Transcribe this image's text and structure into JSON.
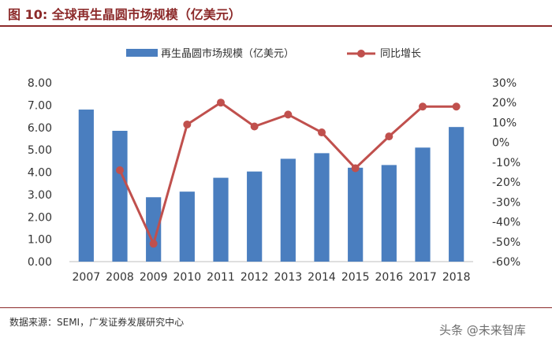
{
  "title": "图 10: 全球再生晶圆市场规模（亿美元）",
  "source": "数据来源：SEMI，广发证券发展研究中心",
  "watermark": "头条 @未来智库",
  "chart_data": {
    "type": "bar",
    "categories": [
      "2007",
      "2008",
      "2009",
      "2010",
      "2011",
      "2012",
      "2013",
      "2014",
      "2015",
      "2016",
      "2017",
      "2018"
    ],
    "series": [
      {
        "name": "再生晶圆市场规模（亿美元）",
        "type": "bar",
        "axis": "left",
        "color": "#4a7ebf",
        "values": [
          6.8,
          5.85,
          2.88,
          3.13,
          3.75,
          4.03,
          4.6,
          4.85,
          4.2,
          4.32,
          5.1,
          6.02
        ]
      },
      {
        "name": "同比增长",
        "type": "line",
        "axis": "right",
        "color": "#c0504d",
        "values": [
          null,
          -14,
          -51,
          9,
          20,
          8,
          14,
          5,
          -13,
          3,
          18,
          18
        ]
      }
    ],
    "y_left": {
      "lim": [
        0,
        8
      ],
      "ticks": [
        "0.00",
        "1.00",
        "2.00",
        "3.00",
        "4.00",
        "5.00",
        "6.00",
        "7.00",
        "8.00"
      ]
    },
    "y_right": {
      "lim": [
        -60,
        30
      ],
      "ticks": [
        "-60%",
        "-50%",
        "-40%",
        "-30%",
        "-20%",
        "-10%",
        "0%",
        "10%",
        "20%",
        "30%"
      ]
    },
    "legend_position": "top-center",
    "grid": false
  }
}
